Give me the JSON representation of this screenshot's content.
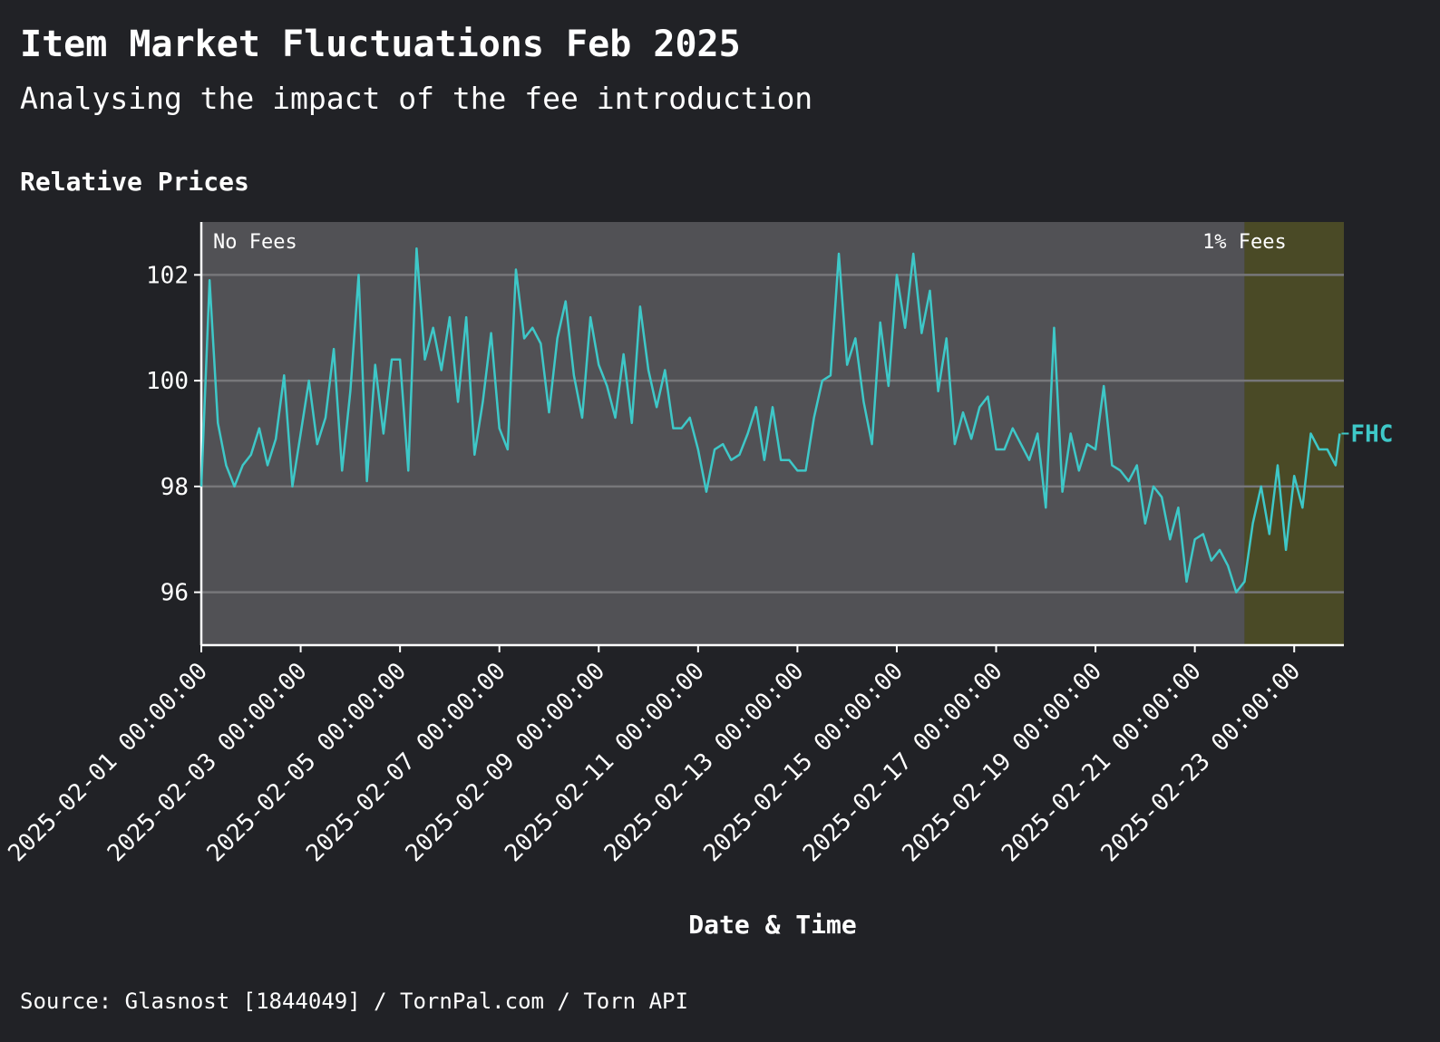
{
  "chart_data": {
    "type": "line",
    "title": "Item Market Fluctuations Feb 2025",
    "subtitle": "Analysing the impact of the fee introduction",
    "plot_title": "Relative Prices",
    "x_label": "Date & Time",
    "source": "Source: Glasnost [1844049] / TornPal.com / Torn API",
    "xlim": [
      "2025-02-01 00:00:00",
      "2025-02-24 00:00:00"
    ],
    "xticks": [
      "2025-02-01 00:00:00",
      "2025-02-03 00:00:00",
      "2025-02-05 00:00:00",
      "2025-02-07 00:00:00",
      "2025-02-09 00:00:00",
      "2025-02-11 00:00:00",
      "2025-02-13 00:00:00",
      "2025-02-15 00:00:00",
      "2025-02-17 00:00:00",
      "2025-02-19 00:00:00",
      "2025-02-21 00:00:00",
      "2025-02-23 00:00:00"
    ],
    "ylim": [
      95,
      103
    ],
    "yticks": [
      96,
      98,
      100,
      102
    ],
    "grid": true,
    "regions": [
      {
        "label": "No Fees",
        "start": "2025-02-01 00:00:00",
        "end": "2025-02-22 00:00:00",
        "color": "#515155"
      },
      {
        "label": "1% Fees",
        "start": "2025-02-22 00:00:00",
        "end": "2025-02-24 00:00:00",
        "color": "#4a4a26"
      }
    ],
    "x": [
      "2025-02-01 00:00:00",
      "2025-02-01 04:00:00",
      "2025-02-01 08:00:00",
      "2025-02-01 12:00:00",
      "2025-02-01 16:00:00",
      "2025-02-01 20:00:00",
      "2025-02-02 00:00:00",
      "2025-02-02 04:00:00",
      "2025-02-02 08:00:00",
      "2025-02-02 12:00:00",
      "2025-02-02 16:00:00",
      "2025-02-02 20:00:00",
      "2025-02-03 00:00:00",
      "2025-02-03 04:00:00",
      "2025-02-03 08:00:00",
      "2025-02-03 12:00:00",
      "2025-02-03 16:00:00",
      "2025-02-03 20:00:00",
      "2025-02-04 00:00:00",
      "2025-02-04 04:00:00",
      "2025-02-04 08:00:00",
      "2025-02-04 12:00:00",
      "2025-02-04 16:00:00",
      "2025-02-04 20:00:00",
      "2025-02-05 00:00:00",
      "2025-02-05 04:00:00",
      "2025-02-05 08:00:00",
      "2025-02-05 12:00:00",
      "2025-02-05 16:00:00",
      "2025-02-05 20:00:00",
      "2025-02-06 00:00:00",
      "2025-02-06 04:00:00",
      "2025-02-06 08:00:00",
      "2025-02-06 12:00:00",
      "2025-02-06 16:00:00",
      "2025-02-06 20:00:00",
      "2025-02-07 00:00:00",
      "2025-02-07 04:00:00",
      "2025-02-07 08:00:00",
      "2025-02-07 12:00:00",
      "2025-02-07 16:00:00",
      "2025-02-07 20:00:00",
      "2025-02-08 00:00:00",
      "2025-02-08 04:00:00",
      "2025-02-08 08:00:00",
      "2025-02-08 12:00:00",
      "2025-02-08 16:00:00",
      "2025-02-08 20:00:00",
      "2025-02-09 00:00:00",
      "2025-02-09 04:00:00",
      "2025-02-09 08:00:00",
      "2025-02-09 12:00:00",
      "2025-02-09 16:00:00",
      "2025-02-09 20:00:00",
      "2025-02-10 00:00:00",
      "2025-02-10 04:00:00",
      "2025-02-10 08:00:00",
      "2025-02-10 12:00:00",
      "2025-02-10 16:00:00",
      "2025-02-10 20:00:00",
      "2025-02-11 00:00:00",
      "2025-02-11 04:00:00",
      "2025-02-11 08:00:00",
      "2025-02-11 12:00:00",
      "2025-02-11 16:00:00",
      "2025-02-11 20:00:00",
      "2025-02-12 00:00:00",
      "2025-02-12 04:00:00",
      "2025-02-12 08:00:00",
      "2025-02-12 12:00:00",
      "2025-02-12 16:00:00",
      "2025-02-12 20:00:00",
      "2025-02-13 00:00:00",
      "2025-02-13 04:00:00",
      "2025-02-13 08:00:00",
      "2025-02-13 12:00:00",
      "2025-02-13 16:00:00",
      "2025-02-13 20:00:00",
      "2025-02-14 00:00:00",
      "2025-02-14 04:00:00",
      "2025-02-14 08:00:00",
      "2025-02-14 12:00:00",
      "2025-02-14 16:00:00",
      "2025-02-14 20:00:00",
      "2025-02-15 00:00:00",
      "2025-02-15 04:00:00",
      "2025-02-15 08:00:00",
      "2025-02-15 12:00:00",
      "2025-02-15 16:00:00",
      "2025-02-15 20:00:00",
      "2025-02-16 00:00:00",
      "2025-02-16 04:00:00",
      "2025-02-16 08:00:00",
      "2025-02-16 12:00:00",
      "2025-02-16 16:00:00",
      "2025-02-16 20:00:00",
      "2025-02-17 00:00:00",
      "2025-02-17 04:00:00",
      "2025-02-17 08:00:00",
      "2025-02-17 12:00:00",
      "2025-02-17 16:00:00",
      "2025-02-17 20:00:00",
      "2025-02-18 00:00:00",
      "2025-02-18 04:00:00",
      "2025-02-18 08:00:00",
      "2025-02-18 12:00:00",
      "2025-02-18 16:00:00",
      "2025-02-18 20:00:00",
      "2025-02-19 00:00:00",
      "2025-02-19 04:00:00",
      "2025-02-19 08:00:00",
      "2025-02-19 12:00:00",
      "2025-02-19 16:00:00",
      "2025-02-19 20:00:00",
      "2025-02-20 00:00:00",
      "2025-02-20 04:00:00",
      "2025-02-20 08:00:00",
      "2025-02-20 12:00:00",
      "2025-02-20 16:00:00",
      "2025-02-20 20:00:00",
      "2025-02-21 00:00:00",
      "2025-02-21 04:00:00",
      "2025-02-21 08:00:00",
      "2025-02-21 12:00:00",
      "2025-02-21 16:00:00",
      "2025-02-21 20:00:00",
      "2025-02-22 00:00:00",
      "2025-02-22 04:00:00",
      "2025-02-22 08:00:00",
      "2025-02-22 12:00:00",
      "2025-02-22 16:00:00",
      "2025-02-22 20:00:00",
      "2025-02-23 00:00:00",
      "2025-02-23 04:00:00",
      "2025-02-23 08:00:00",
      "2025-02-23 12:00:00",
      "2025-02-23 16:00:00",
      "2025-02-23 20:00:00",
      "2025-02-23 22:00:00"
    ],
    "series": [
      {
        "name": "FHC",
        "color": "#3ec8c8",
        "values": [
          98.0,
          101.9,
          99.2,
          98.4,
          98.0,
          98.4,
          98.6,
          99.1,
          98.4,
          98.9,
          100.1,
          98.0,
          99.0,
          100.0,
          98.8,
          99.3,
          100.6,
          98.3,
          99.8,
          102.0,
          98.1,
          100.3,
          99.0,
          100.4,
          100.4,
          98.3,
          102.5,
          100.4,
          101.0,
          100.2,
          101.2,
          99.6,
          101.2,
          98.6,
          99.6,
          100.9,
          99.1,
          98.7,
          102.1,
          100.8,
          101.0,
          100.7,
          99.4,
          100.8,
          101.5,
          100.1,
          99.3,
          101.2,
          100.3,
          99.9,
          99.3,
          100.5,
          99.2,
          101.4,
          100.2,
          99.5,
          100.2,
          99.1,
          99.1,
          99.3,
          98.7,
          97.9,
          98.7,
          98.8,
          98.5,
          98.6,
          99.0,
          99.5,
          98.5,
          99.5,
          98.5,
          98.5,
          98.3,
          98.3,
          99.3,
          100.0,
          100.1,
          102.4,
          100.3,
          100.8,
          99.6,
          98.8,
          101.1,
          99.9,
          102.0,
          101.0,
          102.4,
          100.9,
          101.7,
          99.8,
          100.8,
          98.8,
          99.4,
          98.9,
          99.5,
          99.7,
          98.7,
          98.7,
          99.1,
          98.8,
          98.5,
          99.0,
          97.6,
          101.0,
          97.9,
          99.0,
          98.3,
          98.8,
          98.7,
          99.9,
          98.4,
          98.3,
          98.1,
          98.4,
          97.3,
          98.0,
          97.8,
          97.0,
          97.6,
          96.2,
          97.0,
          97.1,
          96.6,
          96.8,
          96.5,
          96.0,
          96.2,
          97.3,
          98.0,
          97.1,
          98.4,
          96.8,
          98.2,
          97.6,
          99.0,
          98.7,
          98.7,
          98.4,
          99.0
        ]
      }
    ]
  }
}
